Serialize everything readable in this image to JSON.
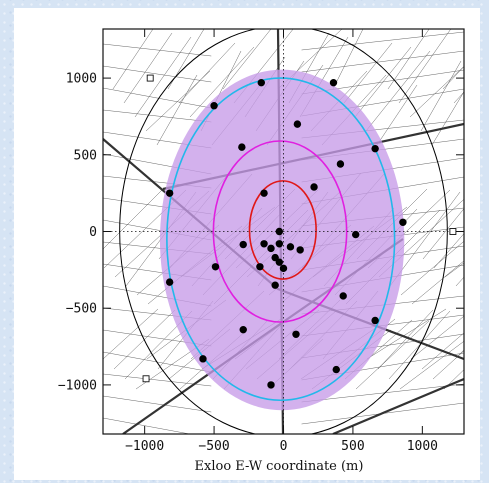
{
  "chart_data": {
    "type": "scatter",
    "title": "",
    "xlabel": "Exloo E-W coordinate (m)",
    "ylabel": "",
    "xlim": [
      -1300,
      1300
    ],
    "ylim": [
      -1320,
      1320
    ],
    "xticks": [
      -1000,
      -500,
      0,
      500,
      1000
    ],
    "yticks": [
      1000,
      500,
      0,
      -500,
      -1000
    ],
    "xtick_labels": [
      "−1000",
      "−500",
      "0",
      "500",
      "1000"
    ],
    "ytick_labels": [
      "1000",
      "500",
      "0",
      "−500",
      "−1000"
    ],
    "grid": "dotted lines at x=0 and y=0",
    "background_map": "street map of Exloo",
    "colors": {
      "fill_region": "#c79be8",
      "outer_ring": "#22b8ea",
      "middle_ring": "#e020e0",
      "inner_ring": "#e01818",
      "boundary": "#000000",
      "points": "#000000"
    },
    "regions": [
      {
        "type": "filled-ellipse",
        "cx": -10,
        "cy": -55,
        "rx": 880,
        "ry": 1110,
        "color": "#c79be8"
      },
      {
        "type": "ring",
        "cx": -20,
        "cy": -50,
        "rx": 820,
        "ry": 1050,
        "color": "#22b8ea"
      },
      {
        "type": "ring",
        "cx": -25,
        "cy": 0,
        "rx": 480,
        "ry": 590,
        "color": "#e020e0"
      },
      {
        "type": "ring",
        "cx": -5,
        "cy": 10,
        "rx": 240,
        "ry": 320,
        "color": "#e01818"
      },
      {
        "type": "ring",
        "cx": 0,
        "cy": 0,
        "rx": 1180,
        "ry": 1340,
        "color": "#000000"
      }
    ],
    "points": [
      {
        "x": -160,
        "y": 970
      },
      {
        "x": 360,
        "y": 970
      },
      {
        "x": -500,
        "y": 820
      },
      {
        "x": 100,
        "y": 700
      },
      {
        "x": -300,
        "y": 550
      },
      {
        "x": 660,
        "y": 540
      },
      {
        "x": 410,
        "y": 440
      },
      {
        "x": 220,
        "y": 290
      },
      {
        "x": -820,
        "y": 250
      },
      {
        "x": -140,
        "y": 250
      },
      {
        "x": 860,
        "y": 60
      },
      {
        "x": -30,
        "y": 0
      },
      {
        "x": 520,
        "y": -20
      },
      {
        "x": -290,
        "y": -85
      },
      {
        "x": -140,
        "y": -80
      },
      {
        "x": -90,
        "y": -110
      },
      {
        "x": -30,
        "y": -80
      },
      {
        "x": 50,
        "y": -100
      },
      {
        "x": 120,
        "y": -120
      },
      {
        "x": -60,
        "y": -170
      },
      {
        "x": -30,
        "y": -200
      },
      {
        "x": -170,
        "y": -230
      },
      {
        "x": 0,
        "y": -240
      },
      {
        "x": -490,
        "y": -230
      },
      {
        "x": -820,
        "y": -330
      },
      {
        "x": -60,
        "y": -350
      },
      {
        "x": 430,
        "y": -420
      },
      {
        "x": 660,
        "y": -580
      },
      {
        "x": -290,
        "y": -640
      },
      {
        "x": 90,
        "y": -670
      },
      {
        "x": -580,
        "y": -830
      },
      {
        "x": 380,
        "y": -900
      },
      {
        "x": -90,
        "y": -1000
      }
    ],
    "squares": [
      {
        "x": -960,
        "y": 1000
      },
      {
        "x": 1220,
        "y": 0
      },
      {
        "x": -990,
        "y": -960
      }
    ]
  }
}
